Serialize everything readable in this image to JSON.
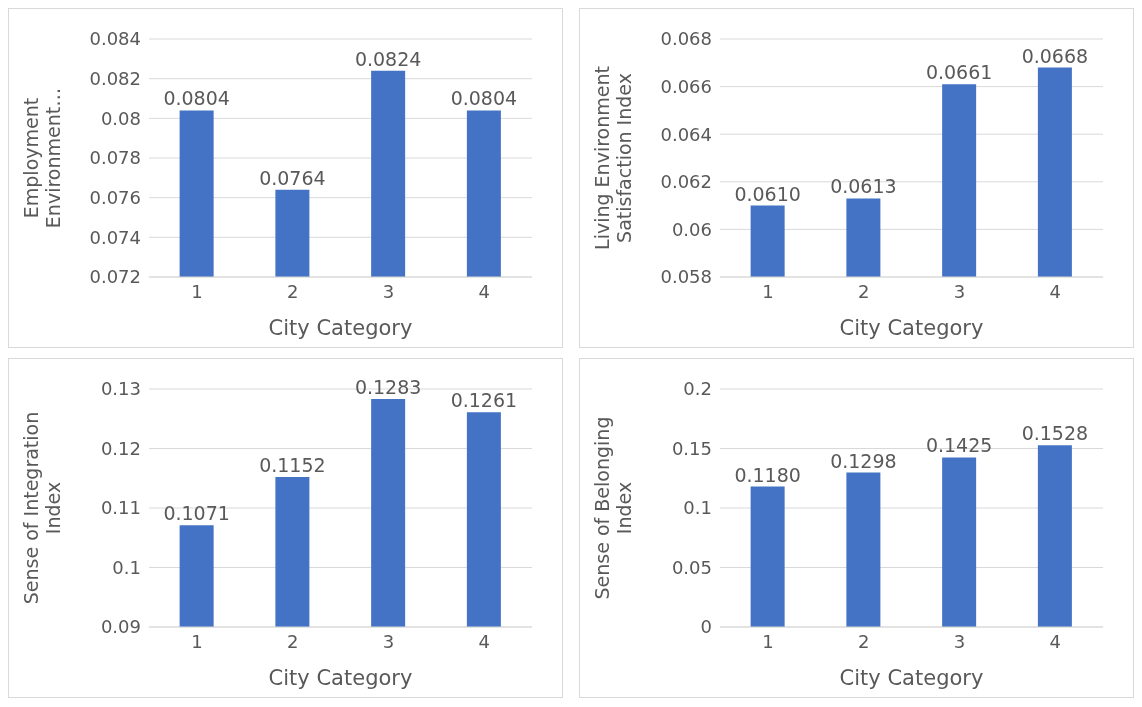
{
  "chart_data": [
    {
      "type": "bar",
      "categories": [
        "1",
        "2",
        "3",
        "4"
      ],
      "values": [
        0.0804,
        0.0764,
        0.0824,
        0.0804
      ],
      "value_labels": [
        "0.0804",
        "0.0764",
        "0.0824",
        "0.0804"
      ],
      "color": "#4472c4",
      "xlabel": "City Category",
      "ylabel": "Employment Environment…",
      "ylim": [
        0.072,
        0.084
      ],
      "yticks": [
        0.072,
        0.074,
        0.076,
        0.078,
        0.08,
        0.082,
        0.084
      ],
      "grid": "y",
      "legend": false
    },
    {
      "type": "bar",
      "categories": [
        "1",
        "2",
        "3",
        "4"
      ],
      "values": [
        0.061,
        0.0613,
        0.0661,
        0.0668
      ],
      "value_labels": [
        "0.0610",
        "0.0613",
        "0.0661",
        "0.0668"
      ],
      "color": "#4472c4",
      "xlabel": "City Category",
      "ylabel": "Living Environment Satisfaction Index",
      "ylim": [
        0.058,
        0.068
      ],
      "yticks": [
        0.058,
        0.06,
        0.062,
        0.064,
        0.066,
        0.068
      ],
      "grid": "y",
      "legend": false
    },
    {
      "type": "bar",
      "categories": [
        "1",
        "2",
        "3",
        "4"
      ],
      "values": [
        0.1071,
        0.1152,
        0.1283,
        0.1261
      ],
      "value_labels": [
        "0.1071",
        "0.1152",
        "0.1283",
        "0.1261"
      ],
      "color": "#4472c4",
      "xlabel": "City Category",
      "ylabel": "Sense of Integration Index",
      "ylim": [
        0.09,
        0.13
      ],
      "yticks": [
        0.09,
        0.1,
        0.11,
        0.12,
        0.13
      ],
      "grid": "y",
      "legend": false
    },
    {
      "type": "bar",
      "categories": [
        "1",
        "2",
        "3",
        "4"
      ],
      "values": [
        0.118,
        0.1298,
        0.1425,
        0.1528
      ],
      "value_labels": [
        "0.1180",
        "0.1298",
        "0.1425",
        "0.1528"
      ],
      "color": "#4472c4",
      "xlabel": "City Category",
      "ylabel": "Sense of Belonging Index",
      "ylim": [
        0,
        0.2
      ],
      "yticks": [
        0,
        0.05,
        0.1,
        0.15,
        0.2
      ],
      "grid": "y",
      "legend": false
    }
  ]
}
